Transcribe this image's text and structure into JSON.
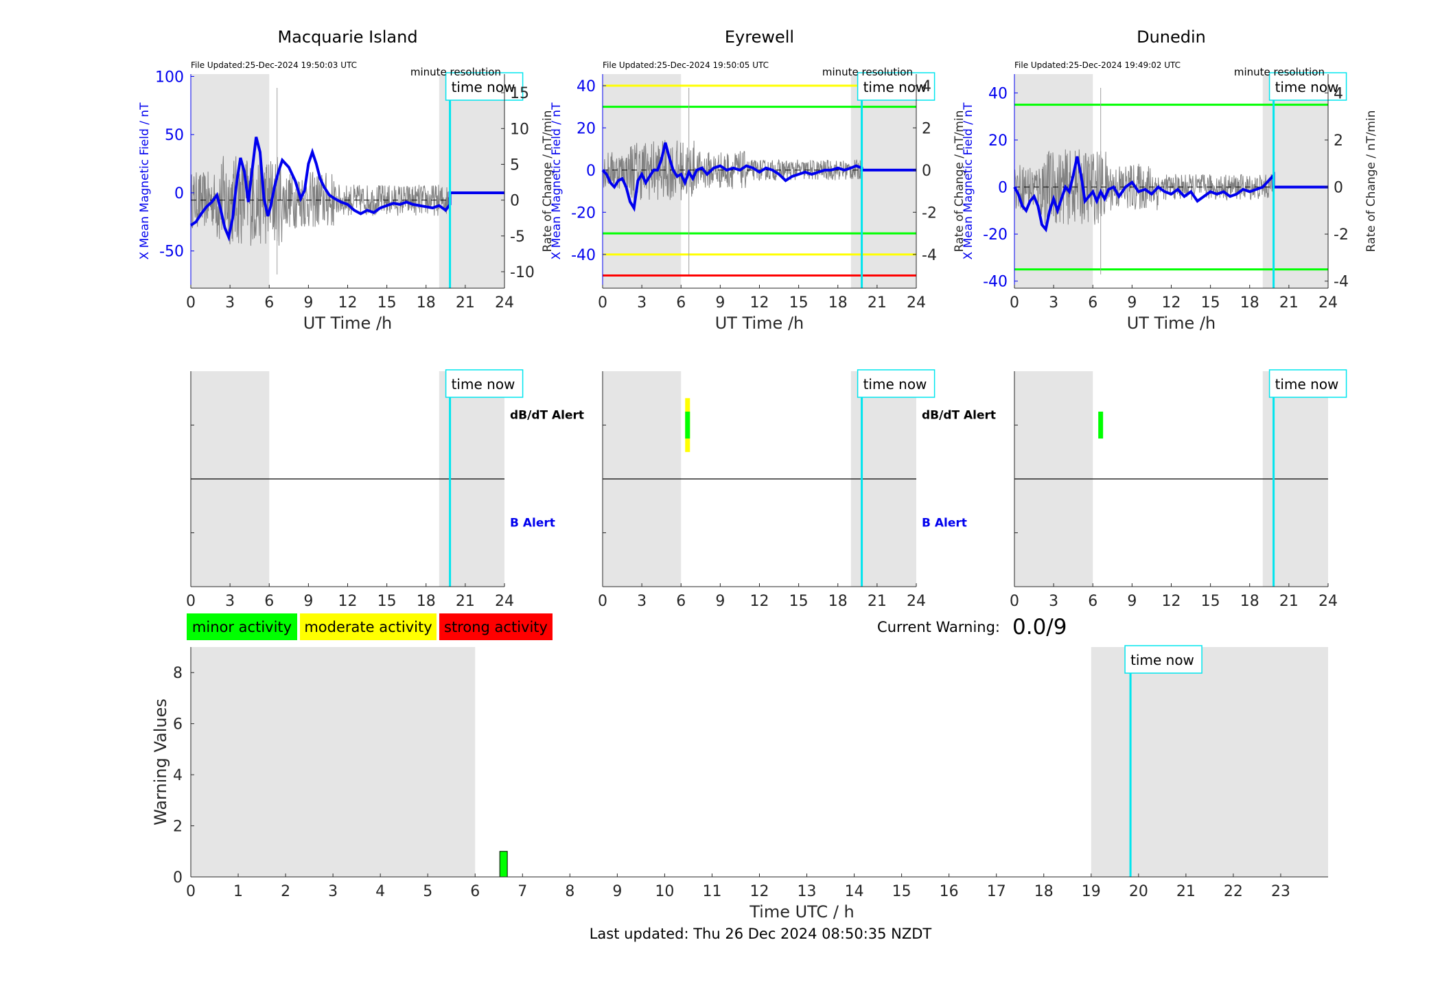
{
  "last_updated": "Last updated: Thu 26 Dec 2024 08:50:35 NZDT",
  "current_warning": {
    "label": "Current Warning:",
    "value": "0.0/9"
  },
  "legend": [
    {
      "label": "minor activity",
      "color": "#00ff00"
    },
    {
      "label": "moderate activity",
      "color": "#ffff00"
    },
    {
      "label": "strong activity",
      "color": "#ff0000"
    }
  ],
  "colors": {
    "field": "#0000ee",
    "time_now": "#00e5ee",
    "shade": "#e5e5e5",
    "green": "#00ff00",
    "yellow": "#ffff00",
    "red": "#ff0000"
  },
  "chart_data": [
    {
      "type": "line",
      "title": "Macquarie Island",
      "file_updated": "File Updated:25-Dec-2024 19:50:03 UTC",
      "resolution": "minute resolution",
      "time_now_label": "time now",
      "time_now": 19.83,
      "xlabel": "UT Time /h",
      "ylabel": "X Mean Magnetic Field / nT",
      "ylabel2": "Rate of Change / nT/min",
      "xlim": [
        0,
        24
      ],
      "xticks": [
        0,
        3,
        6,
        9,
        12,
        15,
        18,
        21,
        24
      ],
      "ylim": [
        -82,
        102
      ],
      "yticks": [
        -50,
        0,
        50,
        100
      ],
      "y2lim": [
        -12.3,
        17.6
      ],
      "y2ticks": [
        -10,
        -5,
        0,
        5,
        10,
        15
      ],
      "shaded": [
        [
          0,
          6
        ],
        [
          19,
          24
        ]
      ],
      "threshold_lines": [],
      "mean_field": [
        [
          0,
          -28
        ],
        [
          0.4,
          -25
        ],
        [
          0.8,
          -18
        ],
        [
          1.2,
          -12
        ],
        [
          1.6,
          -8
        ],
        [
          2.0,
          -2
        ],
        [
          2.3,
          -15
        ],
        [
          2.6,
          -30
        ],
        [
          2.9,
          -38
        ],
        [
          3.2,
          -22
        ],
        [
          3.5,
          8
        ],
        [
          3.8,
          30
        ],
        [
          4.1,
          18
        ],
        [
          4.4,
          -8
        ],
        [
          4.7,
          20
        ],
        [
          5.0,
          48
        ],
        [
          5.3,
          35
        ],
        [
          5.6,
          -5
        ],
        [
          5.9,
          -20
        ],
        [
          6.1,
          -12
        ],
        [
          6.4,
          5
        ],
        [
          6.7,
          18
        ],
        [
          7.0,
          28
        ],
        [
          7.5,
          22
        ],
        [
          8.0,
          10
        ],
        [
          8.4,
          -5
        ],
        [
          8.7,
          2
        ],
        [
          9.0,
          25
        ],
        [
          9.3,
          35
        ],
        [
          9.6,
          25
        ],
        [
          9.9,
          12
        ],
        [
          10.2,
          5
        ],
        [
          10.6,
          -2
        ],
        [
          11.0,
          -5
        ],
        [
          11.5,
          -8
        ],
        [
          12.0,
          -10
        ],
        [
          12.5,
          -15
        ],
        [
          13.0,
          -18
        ],
        [
          13.5,
          -15
        ],
        [
          14.0,
          -17
        ],
        [
          14.5,
          -13
        ],
        [
          15.0,
          -11
        ],
        [
          15.5,
          -9
        ],
        [
          16.0,
          -10
        ],
        [
          16.5,
          -8
        ],
        [
          17.0,
          -10
        ],
        [
          17.5,
          -11
        ],
        [
          18.0,
          -12
        ],
        [
          18.5,
          -13
        ],
        [
          19.0,
          -11
        ],
        [
          19.5,
          -15
        ],
        [
          19.83,
          -10
        ],
        [
          19.83,
          0
        ],
        [
          24,
          0
        ]
      ],
      "rate_of_change_noise": 4.0
    },
    {
      "type": "line",
      "title": "Eyrewell",
      "file_updated": "File Updated:25-Dec-2024 19:50:05 UTC",
      "resolution": "minute resolution",
      "time_now_label": "time now",
      "time_now": 19.83,
      "xlabel": "UT Time /h",
      "ylabel": "X Mean Magnetic Field / nT",
      "ylabel2": "Rate of Change / nT/min",
      "xlim": [
        0,
        24
      ],
      "xticks": [
        0,
        3,
        6,
        9,
        12,
        15,
        18,
        21,
        24
      ],
      "ylim": [
        -56,
        45.5
      ],
      "yticks": [
        -40,
        -20,
        0,
        20,
        40
      ],
      "y2lim": [
        -5.6,
        4.55
      ],
      "y2ticks": [
        -4,
        -2,
        0,
        2,
        4
      ],
      "shaded": [
        [
          0,
          6
        ],
        [
          19,
          24
        ]
      ],
      "threshold_lines": [
        {
          "y": 40,
          "color": "yellow"
        },
        {
          "y": 30,
          "color": "green"
        },
        {
          "y": -30,
          "color": "green"
        },
        {
          "y": -40,
          "color": "yellow"
        },
        {
          "y": -50,
          "color": "red"
        }
      ],
      "mean_field": [
        [
          0,
          0
        ],
        [
          0.3,
          -2
        ],
        [
          0.6,
          -6
        ],
        [
          0.9,
          -8
        ],
        [
          1.2,
          -5
        ],
        [
          1.5,
          -4
        ],
        [
          1.8,
          -8
        ],
        [
          2.1,
          -15
        ],
        [
          2.4,
          -18
        ],
        [
          2.7,
          -5
        ],
        [
          3.0,
          -2
        ],
        [
          3.3,
          -6
        ],
        [
          3.6,
          -3
        ],
        [
          3.9,
          0
        ],
        [
          4.2,
          0
        ],
        [
          4.5,
          5
        ],
        [
          4.8,
          13
        ],
        [
          5.1,
          6
        ],
        [
          5.4,
          0
        ],
        [
          5.7,
          -3
        ],
        [
          6.0,
          -2
        ],
        [
          6.3,
          -6
        ],
        [
          6.6,
          -1
        ],
        [
          6.9,
          -4
        ],
        [
          7.2,
          0
        ],
        [
          7.6,
          1
        ],
        [
          8.0,
          -2
        ],
        [
          8.5,
          1
        ],
        [
          9.0,
          2
        ],
        [
          9.5,
          0
        ],
        [
          10.0,
          1
        ],
        [
          10.5,
          0
        ],
        [
          11.0,
          2
        ],
        [
          11.5,
          1
        ],
        [
          12.0,
          -1
        ],
        [
          12.5,
          1
        ],
        [
          13.0,
          0
        ],
        [
          13.5,
          -2
        ],
        [
          14.0,
          -5
        ],
        [
          14.5,
          -3
        ],
        [
          15.0,
          -2
        ],
        [
          15.5,
          -1
        ],
        [
          16.0,
          -2
        ],
        [
          16.5,
          -1
        ],
        [
          17.0,
          0
        ],
        [
          17.5,
          0
        ],
        [
          18.0,
          1
        ],
        [
          18.5,
          0
        ],
        [
          19.0,
          1
        ],
        [
          19.4,
          2
        ],
        [
          19.83,
          1
        ],
        [
          19.83,
          0
        ],
        [
          24,
          0
        ]
      ],
      "rate_of_change_noise": 0.9
    },
    {
      "type": "line",
      "title": "Dunedin",
      "file_updated": "File Updated:25-Dec-2024 19:49:02 UTC",
      "resolution": "minute resolution",
      "time_now_label": "time now",
      "time_now": 19.83,
      "xlabel": "UT Time /h",
      "ylabel": "X Mean Magnetic Field / nT",
      "ylabel2": "Rate of Change / nT/min",
      "xlim": [
        0,
        24
      ],
      "xticks": [
        0,
        3,
        6,
        9,
        12,
        15,
        18,
        21,
        24
      ],
      "ylim": [
        -43,
        48
      ],
      "yticks": [
        -40,
        -20,
        0,
        20,
        40
      ],
      "y2lim": [
        -4.3,
        4.8
      ],
      "y2ticks": [
        -4,
        -2,
        0,
        2,
        4
      ],
      "shaded": [
        [
          0,
          6
        ],
        [
          19,
          24
        ]
      ],
      "threshold_lines": [
        {
          "y": 35,
          "color": "green"
        },
        {
          "y": -35,
          "color": "green"
        }
      ],
      "mean_field": [
        [
          0,
          0
        ],
        [
          0.3,
          -3
        ],
        [
          0.6,
          -8
        ],
        [
          0.9,
          -10
        ],
        [
          1.2,
          -6
        ],
        [
          1.5,
          -4
        ],
        [
          1.8,
          -8
        ],
        [
          2.1,
          -16
        ],
        [
          2.4,
          -18
        ],
        [
          2.7,
          -10
        ],
        [
          3.0,
          -5
        ],
        [
          3.3,
          -10
        ],
        [
          3.6,
          -5
        ],
        [
          3.9,
          0
        ],
        [
          4.2,
          -2
        ],
        [
          4.5,
          5
        ],
        [
          4.8,
          13
        ],
        [
          5.1,
          5
        ],
        [
          5.4,
          -6
        ],
        [
          5.7,
          -4
        ],
        [
          6.0,
          -2
        ],
        [
          6.3,
          -6
        ],
        [
          6.6,
          -2
        ],
        [
          6.9,
          -5
        ],
        [
          7.2,
          -1
        ],
        [
          7.6,
          0
        ],
        [
          8.0,
          -4
        ],
        [
          8.5,
          0
        ],
        [
          9.0,
          2
        ],
        [
          9.5,
          -2
        ],
        [
          10.0,
          -1
        ],
        [
          10.5,
          -3
        ],
        [
          11.0,
          0
        ],
        [
          11.5,
          -2
        ],
        [
          12.0,
          -3
        ],
        [
          12.5,
          -1
        ],
        [
          13.0,
          -4
        ],
        [
          13.5,
          -2
        ],
        [
          14.0,
          -6
        ],
        [
          14.5,
          -4
        ],
        [
          15.0,
          -2
        ],
        [
          15.5,
          -3
        ],
        [
          16.0,
          -2
        ],
        [
          16.5,
          -4
        ],
        [
          17.0,
          -3
        ],
        [
          17.5,
          -1
        ],
        [
          18.0,
          -2
        ],
        [
          18.5,
          -1
        ],
        [
          19.0,
          0
        ],
        [
          19.5,
          3
        ],
        [
          19.83,
          5
        ],
        [
          19.83,
          0
        ],
        [
          24,
          0
        ]
      ],
      "rate_of_change_noise": 1.0
    },
    {
      "type": "alert",
      "station": "Macquarie Island",
      "xlim": [
        0,
        24
      ],
      "xticks": [
        0,
        3,
        6,
        9,
        12,
        15,
        18,
        21,
        24
      ],
      "shaded": [
        [
          0,
          6
        ],
        [
          19,
          24
        ]
      ],
      "time_now_label": "time now",
      "time_now": 19.83,
      "dbdt_label": "dB/dT Alert",
      "b_label": "B Alert",
      "dbdt_events": []
    },
    {
      "type": "alert",
      "station": "Eyrewell",
      "xlim": [
        0,
        24
      ],
      "xticks": [
        0,
        3,
        6,
        9,
        12,
        15,
        18,
        21,
        24
      ],
      "shaded": [
        [
          0,
          6
        ],
        [
          19,
          24
        ]
      ],
      "time_now_label": "time now",
      "time_now": 19.83,
      "dbdt_label": "dB/dT Alert",
      "b_label": "B Alert",
      "dbdt_events": [
        {
          "t": 6.5,
          "level": "yellow",
          "span": 1.0
        },
        {
          "t": 6.5,
          "level": "green",
          "span": 0.5
        }
      ]
    },
    {
      "type": "alert",
      "station": "Dunedin",
      "xlim": [
        0,
        24
      ],
      "xticks": [
        0,
        3,
        6,
        9,
        12,
        15,
        18,
        21,
        24
      ],
      "shaded": [
        [
          0,
          6
        ],
        [
          19,
          24
        ]
      ],
      "time_now_label": "time now",
      "time_now": 19.83,
      "dbdt_events": [
        {
          "t": 6.6,
          "level": "green",
          "span": 0.5
        }
      ]
    },
    {
      "type": "bar",
      "xlabel": "Time UTC / h",
      "ylabel": "Warning Values",
      "xlim": [
        0,
        24
      ],
      "xticks": [
        0,
        1,
        2,
        3,
        4,
        5,
        6,
        7,
        8,
        9,
        10,
        11,
        12,
        13,
        14,
        15,
        16,
        17,
        18,
        19,
        20,
        21,
        22,
        23
      ],
      "ylim": [
        0,
        9
      ],
      "yticks": [
        0,
        2,
        4,
        6,
        8
      ],
      "shaded": [
        [
          0,
          6
        ],
        [
          19,
          24
        ]
      ],
      "time_now_label": "time now",
      "time_now": 19.83,
      "bars": [
        {
          "x": 6.6,
          "value": 1,
          "color": "green"
        }
      ]
    }
  ]
}
